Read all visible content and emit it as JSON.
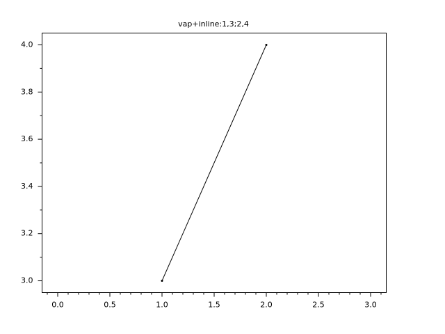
{
  "chart_data": {
    "type": "line",
    "title": "vap+inline:1,3;2,4",
    "x": [
      1,
      2
    ],
    "series": [
      {
        "values": [
          3,
          4
        ],
        "color": "#000000"
      }
    ],
    "xlim": [
      -0.15,
      3.15
    ],
    "ylim": [
      2.95,
      4.05
    ],
    "xticks": [
      {
        "value": 0,
        "label": "0.0"
      },
      0.5,
      {
        "value": 1,
        "label": "1.0"
      },
      1.5,
      {
        "value": 2,
        "label": "2.0"
      },
      2.5,
      {
        "value": 3,
        "label": "3.0"
      }
    ],
    "yticks": [
      {
        "value": 3,
        "label": "3.0"
      },
      3.2,
      3.4,
      3.6,
      3.8,
      {
        "value": 4,
        "label": "4.0"
      }
    ],
    "grid": false
  }
}
